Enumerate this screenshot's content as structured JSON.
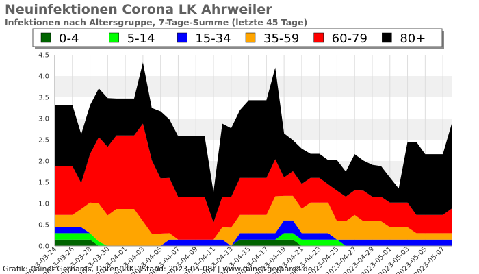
{
  "chart_data": {
    "type": "area",
    "stacked": true,
    "title": "Neuinfektionen Corona LK Ahrweiler",
    "subtitle": "Infektionen nach Altersgruppe, 7-Tage-Summe (letzte 45 Tage)",
    "footer": "Grafik: Rainer Gerhards, Daten: RKI (Stand: 2023-05-08) | www.rainer-gerhards.de",
    "ylim": [
      0,
      4.5
    ],
    "yticks": [
      "0.0",
      "0.5",
      "1.0",
      "1.5",
      "2.0",
      "2.5",
      "3.0",
      "3.5",
      "4.0",
      "4.5"
    ],
    "grid": "horizontal bands",
    "legend_position": "top",
    "x": [
      "2023-03-24",
      "2023-03-25",
      "2023-03-26",
      "2023-03-27",
      "2023-03-28",
      "2023-03-29",
      "2023-03-30",
      "2023-03-31",
      "2023-04-01",
      "2023-04-02",
      "2023-04-03",
      "2023-04-04",
      "2023-04-05",
      "2023-04-06",
      "2023-04-07",
      "2023-04-08",
      "2023-04-09",
      "2023-04-10",
      "2023-04-11",
      "2023-04-12",
      "2023-04-13",
      "2023-04-14",
      "2023-04-15",
      "2023-04-16",
      "2023-04-17",
      "2023-04-18",
      "2023-04-19",
      "2023-04-20",
      "2023-04-21",
      "2023-04-22",
      "2023-04-23",
      "2023-04-24",
      "2023-04-25",
      "2023-04-26",
      "2023-04-27",
      "2023-04-28",
      "2023-04-29",
      "2023-04-30",
      "2023-05-01",
      "2023-05-02",
      "2023-05-03",
      "2023-05-04",
      "2023-05-05",
      "2023-05-06",
      "2023-05-07",
      "2023-05-08"
    ],
    "xtick_labels": [
      "2023-03-24",
      "2023-03-26",
      "2023-03-28",
      "2023-03-30",
      "2023-04-01",
      "2023-04-03",
      "2023-04-05",
      "2023-04-07",
      "2023-04-09",
      "2023-04-11",
      "2023-04-13",
      "2023-04-15",
      "2023-04-17",
      "2023-04-19",
      "2023-04-21",
      "2023-04-23",
      "2023-04-25",
      "2023-04-27",
      "2023-04-29",
      "2023-05-01",
      "2023-05-03",
      "2023-05-05",
      "2023-05-07"
    ],
    "series": [
      {
        "name": "0-4",
        "color": "#006400",
        "values": [
          0.15,
          0.15,
          0.15,
          0.15,
          0.15,
          0,
          0,
          0,
          0,
          0,
          0,
          0,
          0,
          0,
          0,
          0,
          0,
          0,
          0,
          0,
          0,
          0.15,
          0.15,
          0.15,
          0.15,
          0.15,
          0.15,
          0.15,
          0,
          0,
          0,
          0,
          0,
          0,
          0,
          0,
          0,
          0,
          0,
          0,
          0,
          0,
          0,
          0,
          0,
          0
        ]
      },
      {
        "name": "5-14",
        "color": "#00ff00",
        "values": [
          0.15,
          0.15,
          0.15,
          0.15,
          0.15,
          0.1,
          0,
          0,
          0,
          0,
          0,
          0,
          0,
          0,
          0,
          0,
          0,
          0,
          0,
          0,
          0,
          0,
          0,
          0,
          0,
          0,
          0.15,
          0.15,
          0.15,
          0.15,
          0.15,
          0.15,
          0.15,
          0,
          0,
          0,
          0,
          0,
          0,
          0,
          0,
          0,
          0,
          0,
          0,
          0
        ]
      },
      {
        "name": "15-34",
        "color": "#0000ff",
        "values": [
          0.14,
          0.14,
          0.14,
          0.14,
          0,
          0,
          0,
          0,
          0,
          0,
          0,
          0,
          0,
          0.15,
          0.15,
          0.15,
          0.15,
          0.15,
          0.15,
          0.15,
          0,
          0.15,
          0.15,
          0.15,
          0.15,
          0.15,
          0.3,
          0.3,
          0.15,
          0.15,
          0.15,
          0.15,
          0,
          0.15,
          0.15,
          0.15,
          0.15,
          0.15,
          0.15,
          0.15,
          0.15,
          0.15,
          0.15,
          0.15,
          0.15,
          0.15
        ]
      },
      {
        "name": "35-59",
        "color": "#ffa500",
        "values": [
          0.29,
          0.29,
          0.29,
          0.43,
          0.72,
          0.9,
          0.72,
          0.87,
          0.87,
          0.87,
          0.58,
          0.29,
          0.29,
          0.15,
          0,
          0,
          0,
          0,
          0,
          0.29,
          0.43,
          0.43,
          0.43,
          0.43,
          0.43,
          0.87,
          0.58,
          0.58,
          0.58,
          0.72,
          0.72,
          0.72,
          0.43,
          0.43,
          0.58,
          0.43,
          0.43,
          0.43,
          0.29,
          0.29,
          0.29,
          0.15,
          0.15,
          0.15,
          0.15,
          0.15
        ]
      },
      {
        "name": "60-79",
        "color": "#ff0000",
        "values": [
          1.15,
          1.15,
          1.15,
          0.61,
          1.14,
          1.56,
          1.61,
          1.73,
          1.73,
          1.73,
          2.3,
          1.73,
          1.3,
          1.3,
          1.0,
          1.0,
          1.0,
          1.0,
          0.4,
          0.72,
          0.72,
          0.87,
          0.87,
          0.87,
          0.87,
          0.87,
          0.43,
          0.58,
          0.58,
          0.58,
          0.58,
          0.43,
          0.72,
          0.58,
          0.58,
          0.72,
          0.58,
          0.58,
          0.58,
          0.58,
          0.58,
          0.43,
          0.43,
          0.43,
          0.43,
          0.58
        ]
      },
      {
        "name": "80+",
        "color": "#000000",
        "values": [
          1.44,
          1.44,
          1.44,
          1.15,
          1.15,
          1.15,
          1.15,
          0.87,
          0.87,
          0.87,
          1.44,
          1.23,
          1.58,
          1.38,
          1.43,
          1.43,
          1.43,
          1.43,
          0.72,
          1.72,
          1.62,
          1.6,
          1.83,
          1.83,
          1.83,
          2.16,
          1.04,
          0.73,
          0.83,
          0.57,
          0.57,
          0.57,
          0.72,
          0.59,
          0.85,
          0.71,
          0.75,
          0.72,
          0.59,
          0.33,
          1.43,
          1.72,
          1.43,
          1.43,
          1.43,
          1.99
        ]
      }
    ]
  }
}
